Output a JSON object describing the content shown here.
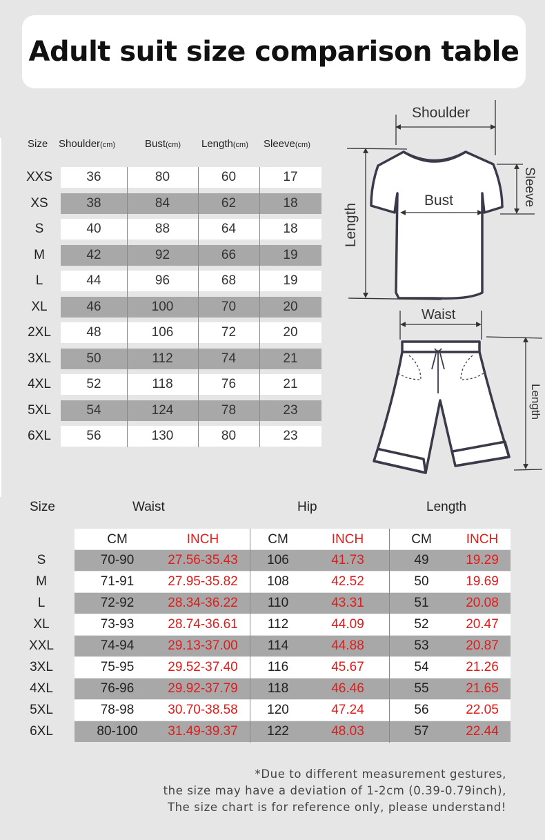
{
  "title": "Adult suit size comparison table",
  "top_table": {
    "headers": [
      {
        "label": "Size",
        "unit": ""
      },
      {
        "label": "Shoulder",
        "unit": "(cm)"
      },
      {
        "label": "Bust",
        "unit": "(cm)"
      },
      {
        "label": "Length",
        "unit": "(cm)"
      },
      {
        "label": "Sleeve",
        "unit": "(cm)"
      }
    ],
    "rows": [
      [
        "XXS",
        "36",
        "80",
        "60",
        "17"
      ],
      [
        "XS",
        "38",
        "84",
        "62",
        "18"
      ],
      [
        "S",
        "40",
        "88",
        "64",
        "18"
      ],
      [
        "M",
        "42",
        "92",
        "66",
        "19"
      ],
      [
        "L",
        "44",
        "96",
        "68",
        "19"
      ],
      [
        "XL",
        "46",
        "100",
        "70",
        "20"
      ],
      [
        "2XL",
        "48",
        "106",
        "72",
        "20"
      ],
      [
        "3XL",
        "50",
        "112",
        "74",
        "21"
      ],
      [
        "4XL",
        "52",
        "118",
        "76",
        "21"
      ],
      [
        "5XL",
        "54",
        "124",
        "78",
        "23"
      ],
      [
        "6XL",
        "56",
        "130",
        "80",
        "23"
      ]
    ]
  },
  "diagram_labels": {
    "shoulder": "Shoulder",
    "bust": "Bust",
    "length": "Length",
    "sleeve": "Sleeve",
    "waist": "Waist",
    "pants_length": "Length"
  },
  "bottom_table": {
    "size_label": "Size",
    "groups": [
      "Waist",
      "Hip",
      "Length"
    ],
    "sub": [
      "CM",
      "INCH",
      "CM",
      "INCH",
      "CM",
      "INCH"
    ],
    "rows": [
      [
        "S",
        "70-90",
        "27.56-35.43",
        "106",
        "41.73",
        "49",
        "19.29"
      ],
      [
        "M",
        "71-91",
        "27.95-35.82",
        "108",
        "42.52",
        "50",
        "19.69"
      ],
      [
        "L",
        "72-92",
        "28.34-36.22",
        "110",
        "43.31",
        "51",
        "20.08"
      ],
      [
        "XL",
        "73-93",
        "28.74-36.61",
        "112",
        "44.09",
        "52",
        "20.47"
      ],
      [
        "XXL",
        "74-94",
        "29.13-37.00",
        "114",
        "44.88",
        "53",
        "20.87"
      ],
      [
        "3XL",
        "75-95",
        "29.52-37.40",
        "116",
        "45.67",
        "54",
        "21.26"
      ],
      [
        "4XL",
        "76-96",
        "29.92-37.79",
        "118",
        "46.46",
        "55",
        "21.65"
      ],
      [
        "5XL",
        "78-98",
        "30.70-38.58",
        "120",
        "47.24",
        "56",
        "22.05"
      ],
      [
        "6XL",
        "80-100",
        "31.49-39.37",
        "122",
        "48.03",
        "57",
        "22.44"
      ]
    ]
  },
  "note": [
    "*Due to different measurement gestures,",
    "the size may have a deviation of 1-2cm (0.39-0.79inch),",
    "The size chart is for reference only, please understand!"
  ],
  "colors": {
    "accent_red": "#e21b1b",
    "row_alt": "#a8a8a8",
    "background": "#e6e6e6"
  }
}
